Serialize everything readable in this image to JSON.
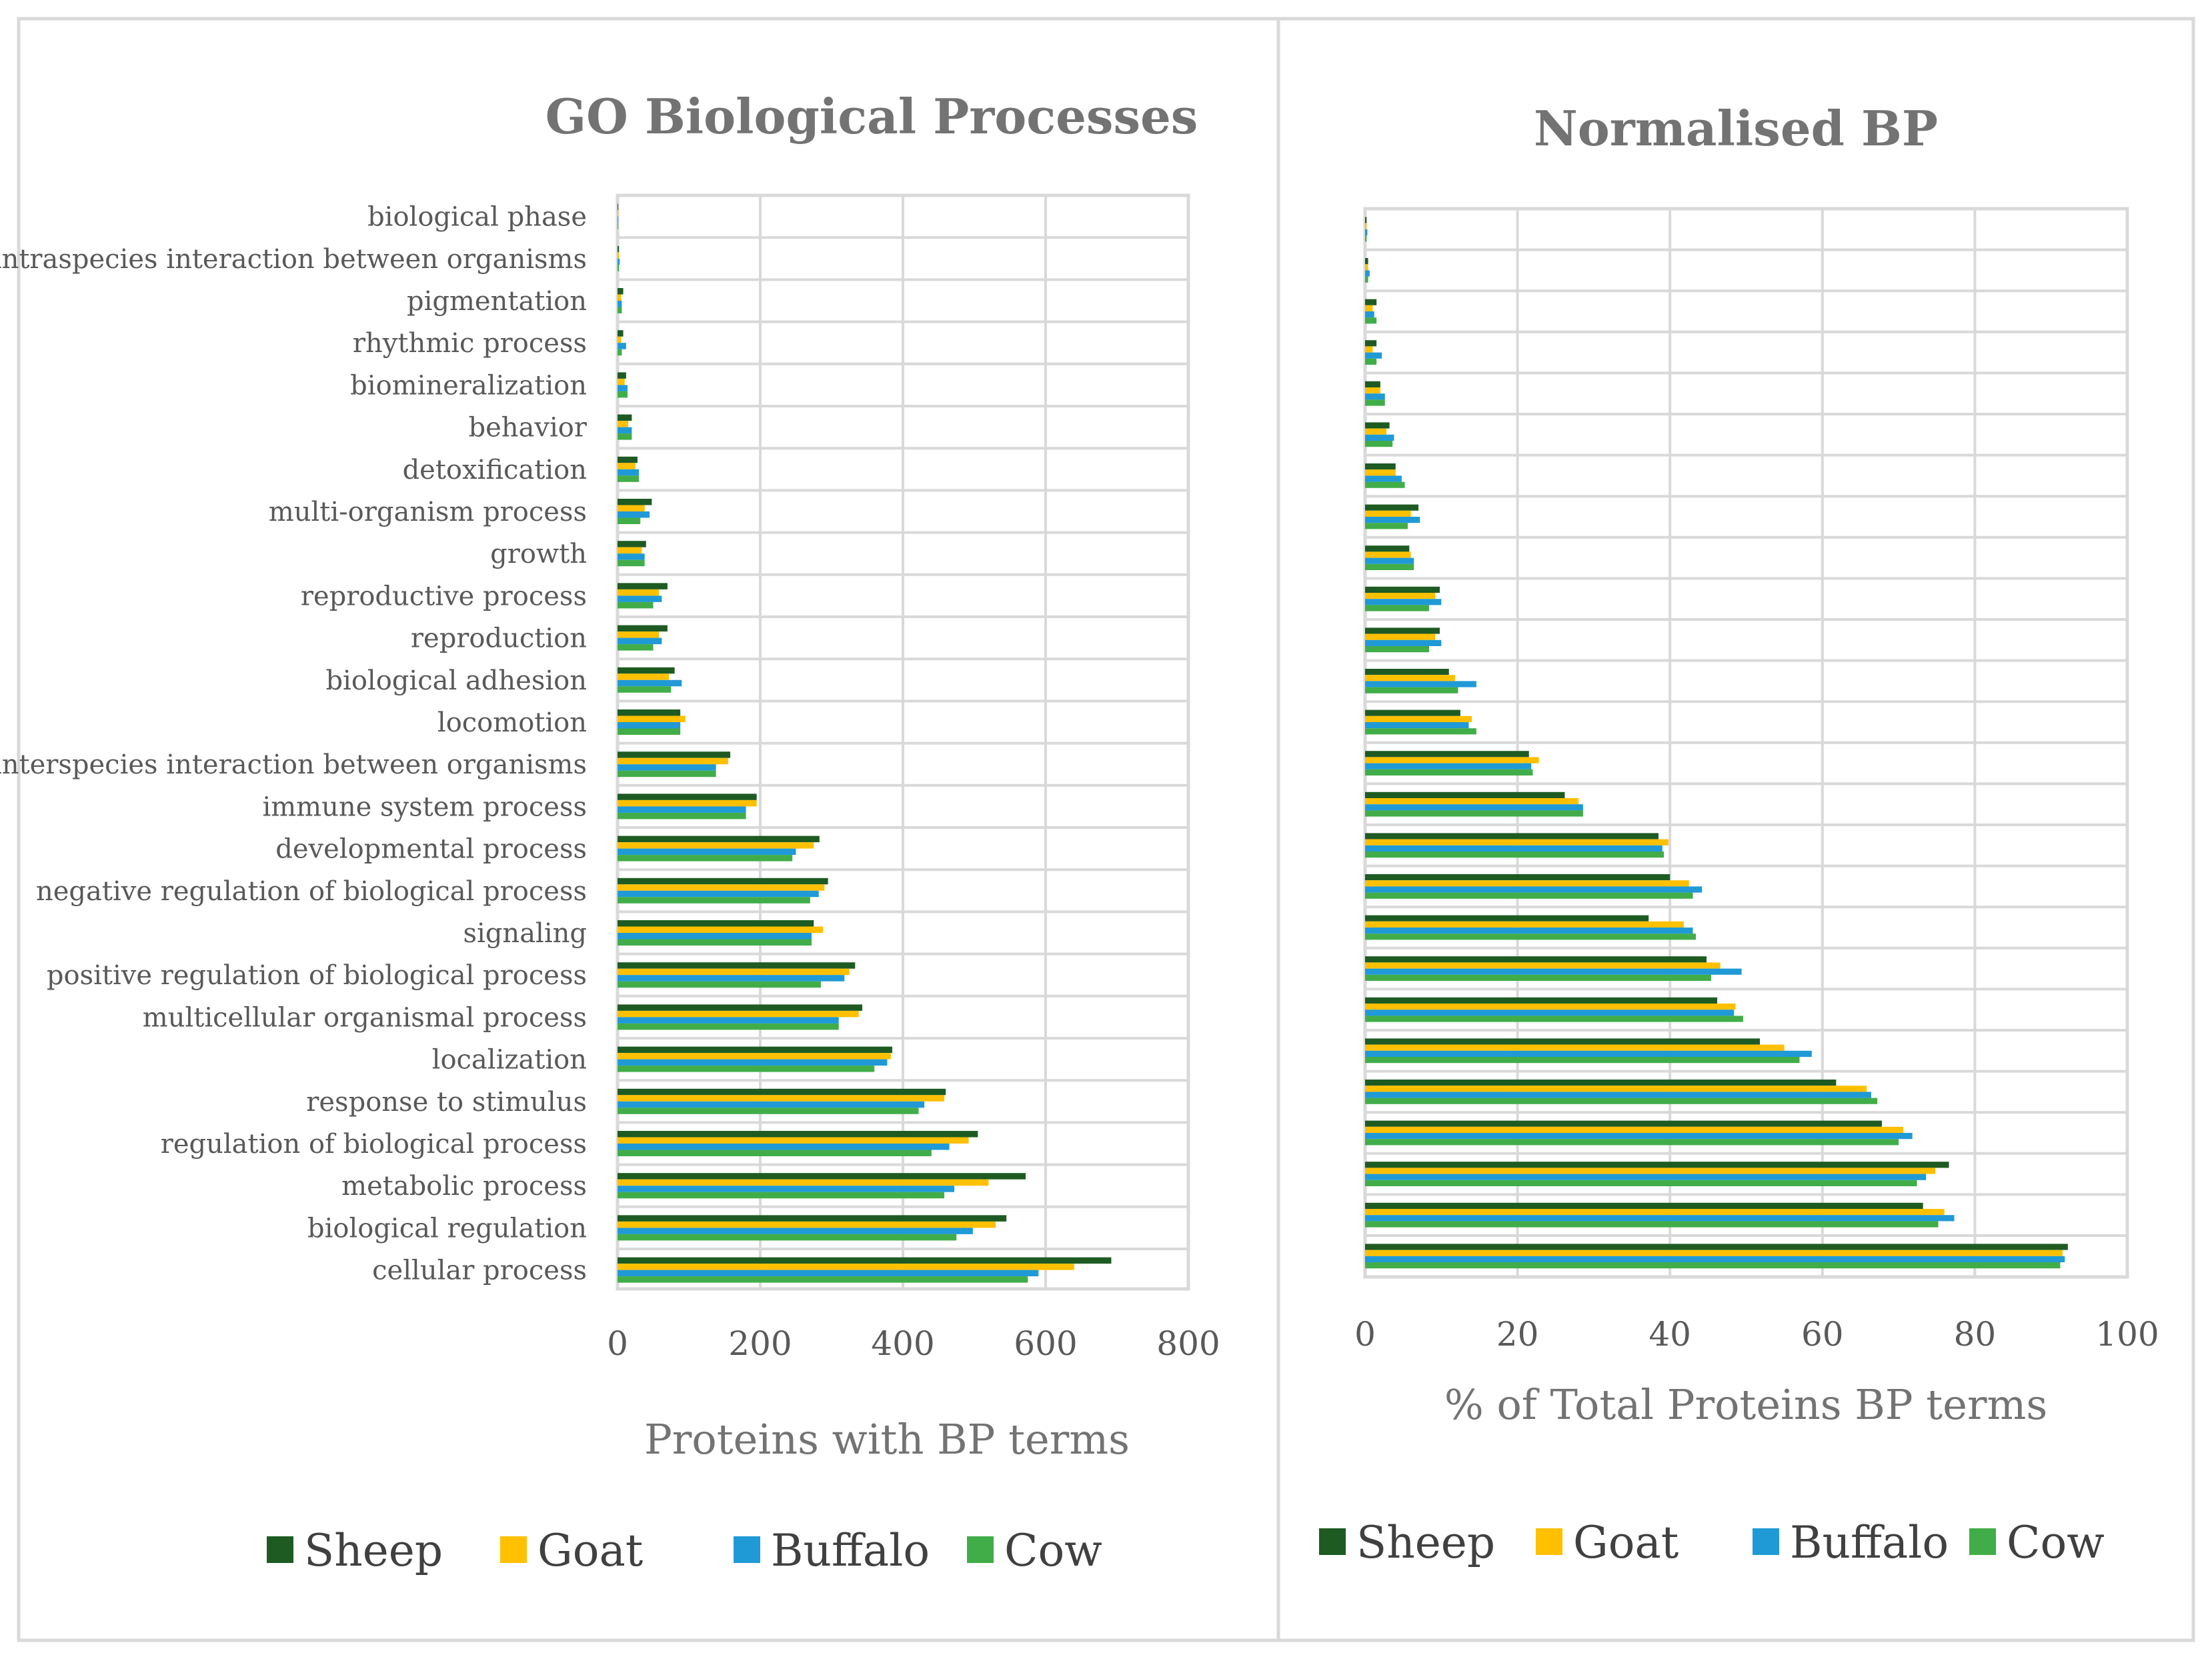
{
  "chart_data": [
    {
      "type": "bar",
      "orientation": "horizontal",
      "title": "GO Biological Processes",
      "xlabel": "Proteins with BP terms",
      "ylabel": "",
      "xlim": [
        0,
        800
      ],
      "xticks": [
        "0",
        "200",
        "400",
        "600",
        "800"
      ],
      "grid": true,
      "legend_position": "bottom",
      "categories": [
        "biological phase",
        "intraspecies interaction between organisms",
        "pigmentation",
        "rhythmic process",
        "biomineralization",
        "behavior",
        "detoxification",
        "multi-organism process",
        "growth",
        "reproductive process",
        "reproduction",
        "biological adhesion",
        "locomotion",
        "interspecies interaction between organisms",
        "immune system process",
        "developmental process",
        "negative regulation of biological process",
        "signaling",
        "positive regulation of biological process",
        "multicellular organismal process",
        "localization",
        "response to stimulus",
        "regulation of biological process",
        "metabolic process",
        "biological regulation",
        "cellular process"
      ],
      "series": [
        {
          "name": "Sheep",
          "values": [
            1,
            2,
            8,
            8,
            12,
            20,
            28,
            48,
            40,
            70,
            70,
            80,
            88,
            158,
            195,
            283,
            295,
            275,
            333,
            343,
            385,
            460,
            505,
            572,
            545,
            692
          ]
        },
        {
          "name": "Goat",
          "values": [
            1,
            2,
            5,
            5,
            10,
            15,
            25,
            38,
            34,
            58,
            58,
            72,
            95,
            155,
            195,
            275,
            290,
            288,
            325,
            338,
            383,
            458,
            492,
            520,
            530,
            640
          ]
        },
        {
          "name": "Buffalo",
          "values": [
            1,
            3,
            6,
            12,
            14,
            20,
            30,
            45,
            38,
            62,
            62,
            90,
            88,
            138,
            180,
            250,
            282,
            272,
            318,
            310,
            378,
            430,
            465,
            472,
            498,
            590
          ]
        },
        {
          "name": "Cow",
          "values": [
            1,
            2,
            6,
            6,
            14,
            20,
            30,
            32,
            38,
            50,
            50,
            75,
            88,
            138,
            180,
            245,
            270,
            272,
            285,
            310,
            360,
            422,
            440,
            458,
            475,
            575
          ]
        }
      ]
    },
    {
      "type": "bar",
      "orientation": "horizontal",
      "title": "Normalised BP",
      "xlabel": "% of Total Proteins BP terms",
      "ylabel": "",
      "xlim": [
        0,
        100
      ],
      "xticks": [
        "0",
        "20",
        "40",
        "60",
        "80",
        "100"
      ],
      "grid": true,
      "legend_position": "bottom",
      "series": [
        {
          "name": "Sheep",
          "values": [
            0.2,
            0.4,
            1.5,
            1.5,
            2.0,
            3.2,
            4.0,
            7.0,
            5.8,
            9.8,
            9.8,
            11.0,
            12.5,
            21.5,
            26.2,
            38.5,
            40.0,
            37.2,
            44.8,
            46.2,
            51.8,
            61.8,
            67.8,
            76.6,
            73.2,
            92.2
          ]
        },
        {
          "name": "Goat",
          "values": [
            0.2,
            0.4,
            1.0,
            1.0,
            2.0,
            2.8,
            4.0,
            6.0,
            6.0,
            9.2,
            9.2,
            11.8,
            14.0,
            22.8,
            28.0,
            39.8,
            42.5,
            41.8,
            46.6,
            48.6,
            55.0,
            65.8,
            70.6,
            74.8,
            76.0,
            91.5
          ]
        },
        {
          "name": "Buffalo",
          "values": [
            0.3,
            0.6,
            1.2,
            2.2,
            2.6,
            3.8,
            4.8,
            7.2,
            6.4,
            10.0,
            10.0,
            14.6,
            13.6,
            21.8,
            28.6,
            39.0,
            44.2,
            43.0,
            49.4,
            48.4,
            58.6,
            66.4,
            71.8,
            73.6,
            77.3,
            91.8
          ]
        },
        {
          "name": "Cow",
          "values": [
            0.2,
            0.4,
            1.5,
            1.5,
            2.6,
            3.6,
            5.2,
            5.6,
            6.4,
            8.4,
            8.4,
            12.2,
            14.6,
            22.0,
            28.6,
            39.2,
            43.0,
            43.4,
            45.4,
            49.6,
            57.0,
            67.2,
            70.0,
            72.4,
            75.2,
            91.2
          ]
        }
      ]
    }
  ],
  "colors": {
    "Sheep": "#1e5b23",
    "Goat": "#ffc000",
    "Buffalo": "#1f9ad6",
    "Cow": "#41ad49"
  }
}
